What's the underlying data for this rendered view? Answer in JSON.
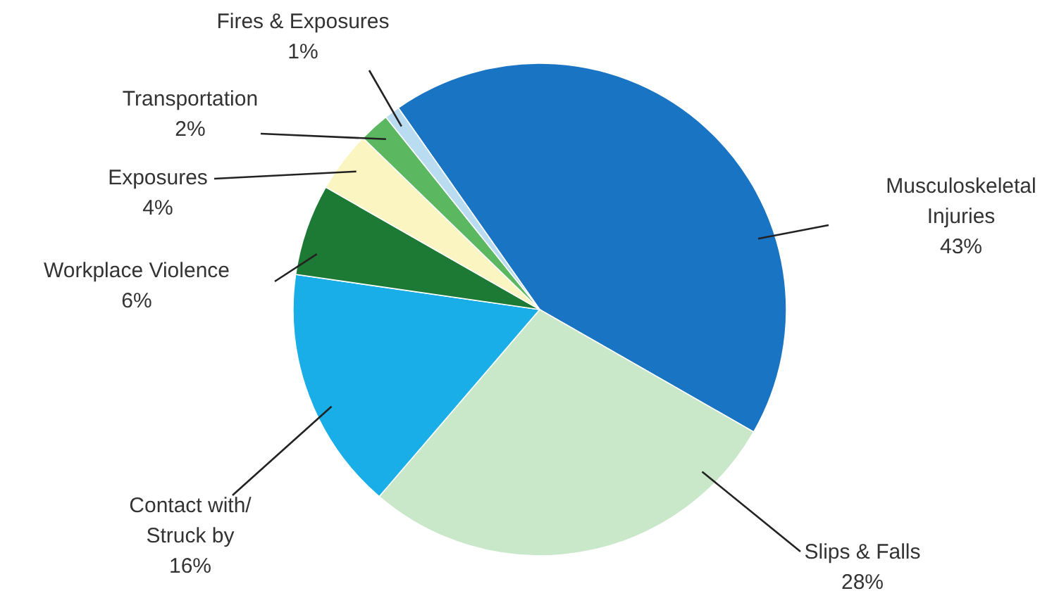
{
  "chart_data": {
    "type": "pie",
    "categories": [
      "Musculoskeletal Injuries",
      "Slips & Falls",
      "Contact with/ Struck by",
      "Workplace Violence",
      "Exposures",
      "Transportation",
      "Fires & Exposures"
    ],
    "values": [
      43,
      28,
      16,
      6,
      4,
      2,
      1
    ],
    "value_labels": [
      "43%",
      "28%",
      "16%",
      "6%",
      "4%",
      "2%",
      "1%"
    ],
    "colors": [
      "#1a74c4",
      "#c9e7c9",
      "#1aaee8",
      "#1d7a35",
      "#fbf5c2",
      "#5cb860",
      "#b9dcf1"
    ]
  }
}
